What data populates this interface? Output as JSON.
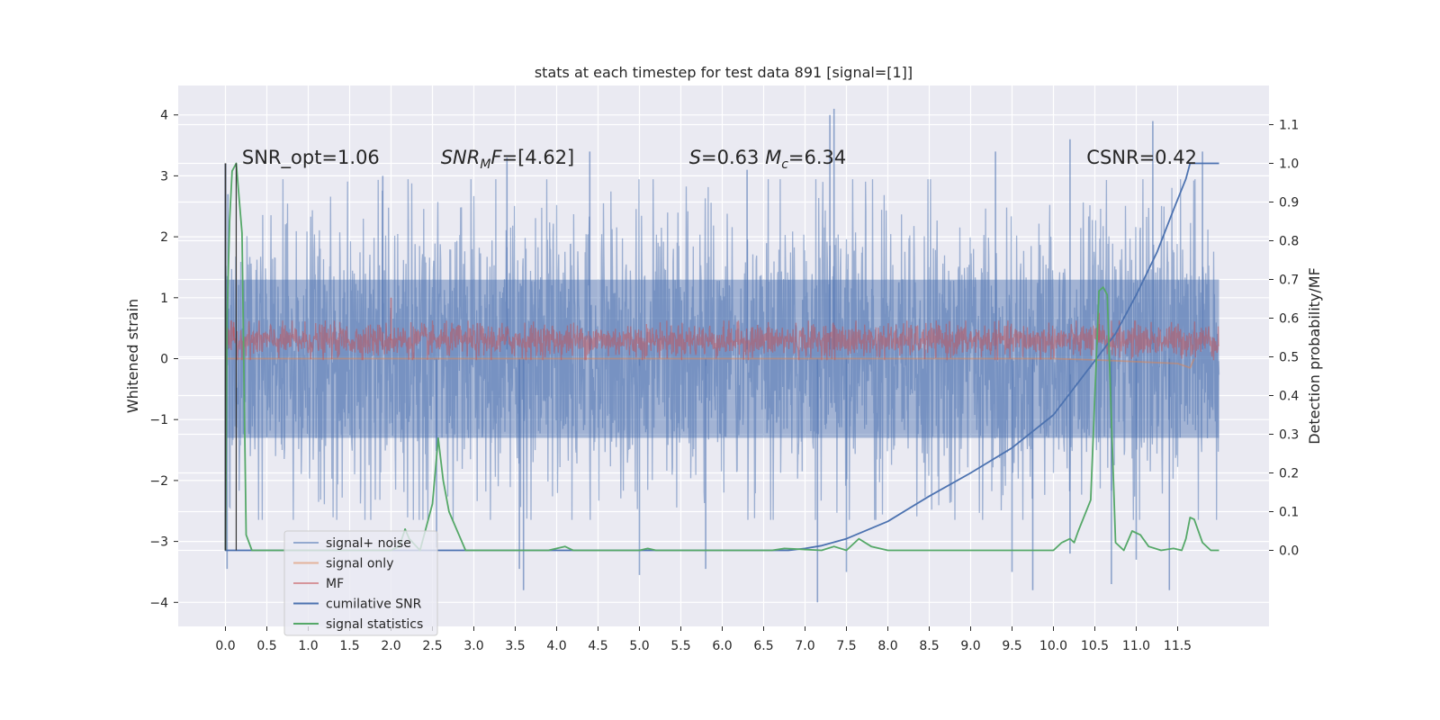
{
  "chart_data": {
    "type": "line",
    "title": "stats at each timestep for test data 891 [signal=[1]]",
    "xlabel": "",
    "ylabel": "Whitened strain",
    "y2label": "Detection probability/MF",
    "xlim": [
      -0.5,
      12.5
    ],
    "ylim": [
      -4.45,
      4.45
    ],
    "y2lim": [
      -0.197,
      1.195
    ],
    "grid": true,
    "legend": "lower-left",
    "x_ticks": [
      0.0,
      0.5,
      1.0,
      1.5,
      2.0,
      2.5,
      3.0,
      3.5,
      4.0,
      4.5,
      5.0,
      5.5,
      6.0,
      6.5,
      7.0,
      7.5,
      8.0,
      8.5,
      9.0,
      9.5,
      10.0,
      10.5,
      11.0,
      11.5
    ],
    "x_tick_labels": [
      "0.0",
      "0.5",
      "1.0",
      "1.5",
      "2.0",
      "2.5",
      "3.0",
      "3.5",
      "4.0",
      "4.5",
      "5.0",
      "5.5",
      "6.0",
      "6.5",
      "7.0",
      "7.5",
      "8.0",
      "8.5",
      "9.0",
      "9.5",
      "10.0",
      "10.5",
      "11.0",
      "11.5"
    ],
    "y_ticks": [
      -4,
      -3,
      -2,
      -1,
      0,
      1,
      2,
      3,
      4
    ],
    "y_tick_labels": [
      "−4",
      "−3",
      "−2",
      "−1",
      "0",
      "1",
      "2",
      "3",
      "4"
    ],
    "y2_ticks": [
      0.0,
      0.1,
      0.2,
      0.3,
      0.4,
      0.5,
      0.6,
      0.7,
      0.8,
      0.9,
      1.0,
      1.1
    ],
    "y2_tick_labels": [
      "0.0",
      "0.1",
      "0.2",
      "0.3",
      "0.4",
      "0.5",
      "0.6",
      "0.7",
      "0.8",
      "0.9",
      "1.0",
      "1.1"
    ],
    "annotations": [
      {
        "text": "SNR_opt=1.06",
        "x": 0.2,
        "y": 3.3
      },
      {
        "text": "SNR_M F=[4.62]",
        "x": 2.6,
        "y": 3.3
      },
      {
        "text": "S=0.63   M_c=6.34",
        "x": 5.6,
        "y": 3.3
      },
      {
        "text": "CSNR=0.42",
        "x": 10.4,
        "y": 3.3
      }
    ],
    "series": [
      {
        "name": "signal+ noise",
        "axis": "left",
        "color": "#4c72b0",
        "opacity": 0.5,
        "kind": "dense_noise",
        "x_range": [
          0.0,
          12.0
        ],
        "typical_range": [
          -2.0,
          2.3
        ],
        "extremes": [
          {
            "x": 0.02,
            "y": -3.45
          },
          {
            "x": 0.03,
            "y": 2.7
          },
          {
            "x": 1.9,
            "y": 3.0
          },
          {
            "x": 2.55,
            "y": -3.1
          },
          {
            "x": 3.4,
            "y": 3.3
          },
          {
            "x": 3.55,
            "y": -3.45
          },
          {
            "x": 3.6,
            "y": -3.8
          },
          {
            "x": 4.4,
            "y": 3.4
          },
          {
            "x": 5.0,
            "y": -3.55
          },
          {
            "x": 5.8,
            "y": -3.45
          },
          {
            "x": 6.3,
            "y": 3.1
          },
          {
            "x": 7.15,
            "y": -4.0
          },
          {
            "x": 7.3,
            "y": 4.0
          },
          {
            "x": 7.35,
            "y": 4.1
          },
          {
            "x": 7.5,
            "y": -3.5
          },
          {
            "x": 9.3,
            "y": 3.4
          },
          {
            "x": 9.5,
            "y": -3.5
          },
          {
            "x": 9.75,
            "y": -3.8
          },
          {
            "x": 10.2,
            "y": 3.6
          },
          {
            "x": 10.2,
            "y": -3.2
          },
          {
            "x": 10.7,
            "y": -3.7
          },
          {
            "x": 11.0,
            "y": -3.3
          },
          {
            "x": 11.2,
            "y": 3.9
          },
          {
            "x": 11.4,
            "y": -3.8
          },
          {
            "x": 11.8,
            "y": 3.4
          }
        ]
      },
      {
        "name": "signal only",
        "axis": "left",
        "color": "#dd8452",
        "opacity": 0.5,
        "kind": "line",
        "points": [
          [
            0.0,
            0.0
          ],
          [
            10.0,
            0.0
          ],
          [
            10.5,
            -0.02
          ],
          [
            11.0,
            -0.05
          ],
          [
            11.5,
            -0.08
          ],
          [
            11.65,
            -0.15
          ],
          [
            11.7,
            0.0
          ]
        ]
      },
      {
        "name": "MF",
        "axis": "left",
        "color": "#c44e52",
        "opacity": 0.5,
        "kind": "dense_noise",
        "x_range": [
          0.0,
          12.0
        ],
        "typical_range": [
          0.05,
          0.55
        ],
        "extremes": [
          {
            "x": 2.0,
            "y": 1.0
          },
          {
            "x": 10.55,
            "y": 0.75
          },
          {
            "x": 0.1,
            "y": 0.6
          }
        ]
      },
      {
        "name": "cumilative SNR",
        "axis": "right",
        "color": "#4c72b0",
        "opacity": 1.0,
        "kind": "line",
        "points": [
          [
            0.0,
            1.0
          ],
          [
            0.0,
            0.0
          ],
          [
            6.8,
            0.0
          ],
          [
            7.0,
            0.005
          ],
          [
            7.2,
            0.012
          ],
          [
            7.5,
            0.03
          ],
          [
            8.0,
            0.075
          ],
          [
            8.5,
            0.14
          ],
          [
            9.0,
            0.2
          ],
          [
            9.5,
            0.265
          ],
          [
            10.0,
            0.35
          ],
          [
            10.5,
            0.49
          ],
          [
            10.75,
            0.56
          ],
          [
            11.0,
            0.66
          ],
          [
            11.25,
            0.77
          ],
          [
            11.45,
            0.88
          ],
          [
            11.6,
            0.96
          ],
          [
            11.65,
            1.0
          ],
          [
            12.0,
            1.0
          ]
        ]
      },
      {
        "name": "signal statistics",
        "axis": "right",
        "color": "#55a868",
        "opacity": 1.0,
        "kind": "line",
        "points": [
          [
            0.0,
            0.0
          ],
          [
            0.02,
            0.6
          ],
          [
            0.05,
            0.85
          ],
          [
            0.08,
            0.98
          ],
          [
            0.13,
            1.0
          ],
          [
            0.2,
            0.82
          ],
          [
            0.25,
            0.04
          ],
          [
            0.32,
            0.0
          ],
          [
            2.0,
            0.0
          ],
          [
            2.1,
            0.01
          ],
          [
            2.17,
            0.055
          ],
          [
            2.22,
            0.03
          ],
          [
            2.35,
            0.0
          ],
          [
            2.5,
            0.12
          ],
          [
            2.57,
            0.29
          ],
          [
            2.63,
            0.18
          ],
          [
            2.7,
            0.1
          ],
          [
            2.8,
            0.05
          ],
          [
            2.9,
            0.0
          ],
          [
            3.9,
            0.0
          ],
          [
            4.1,
            0.01
          ],
          [
            4.2,
            0.0
          ],
          [
            5.0,
            0.0
          ],
          [
            5.1,
            0.005
          ],
          [
            5.2,
            0.0
          ],
          [
            6.6,
            0.0
          ],
          [
            6.75,
            0.005
          ],
          [
            7.2,
            0.0
          ],
          [
            7.35,
            0.01
          ],
          [
            7.5,
            0.0
          ],
          [
            7.65,
            0.03
          ],
          [
            7.8,
            0.01
          ],
          [
            8.0,
            0.0
          ],
          [
            9.9,
            0.0
          ],
          [
            10.0,
            0.0
          ],
          [
            10.1,
            0.02
          ],
          [
            10.2,
            0.03
          ],
          [
            10.25,
            0.02
          ],
          [
            10.3,
            0.05
          ],
          [
            10.45,
            0.13
          ],
          [
            10.55,
            0.67
          ],
          [
            10.6,
            0.68
          ],
          [
            10.65,
            0.66
          ],
          [
            10.75,
            0.02
          ],
          [
            10.85,
            0.0
          ],
          [
            10.95,
            0.05
          ],
          [
            11.05,
            0.04
          ],
          [
            11.15,
            0.01
          ],
          [
            11.3,
            0.0
          ],
          [
            11.45,
            0.005
          ],
          [
            11.55,
            0.0
          ],
          [
            11.6,
            0.03
          ],
          [
            11.65,
            0.085
          ],
          [
            11.7,
            0.08
          ],
          [
            11.8,
            0.02
          ],
          [
            11.9,
            0.0
          ],
          [
            12.0,
            0.0
          ]
        ]
      }
    ]
  }
}
